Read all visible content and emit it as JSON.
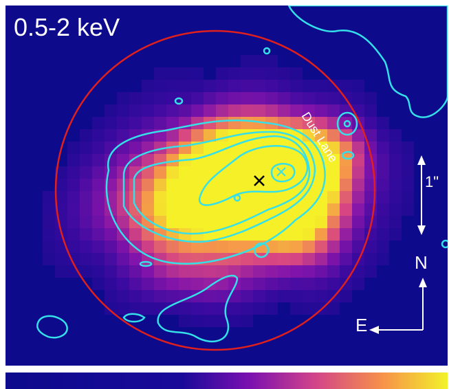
{
  "image": {
    "band_label": "0.5-2 keV",
    "annotations": {
      "dust_lane": "Dust Lane",
      "scale_bar": "1\"",
      "north": "N",
      "east": "E"
    }
  }
}
